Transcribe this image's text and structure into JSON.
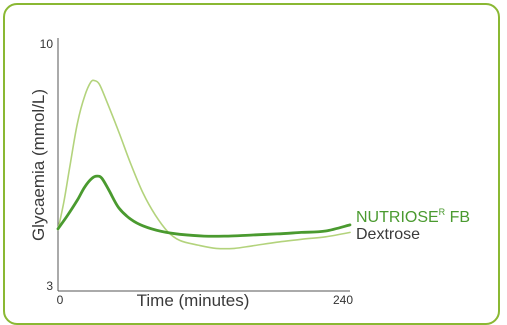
{
  "chart_data": {
    "type": "line",
    "title": "",
    "xlabel": "Time (minutes)",
    "ylabel": "Glycaemia (mmol/L)",
    "xlim": [
      0,
      240
    ],
    "ylim": [
      3,
      10
    ],
    "x_ticks": [
      "0",
      "240"
    ],
    "y_ticks": [
      "3",
      "10"
    ],
    "grid": false,
    "legend_placement": "right, at line ends",
    "series": [
      {
        "name": "NUTRIOSE",
        "name_superscript": "R",
        "name_suffix": " FB",
        "color": "#4a9a2f",
        "stroke_width": 2.8,
        "points": [
          [
            0,
            4.72
          ],
          [
            8,
            5.1
          ],
          [
            16,
            5.52
          ],
          [
            22,
            5.88
          ],
          [
            28,
            6.12
          ],
          [
            32,
            6.18
          ],
          [
            36,
            6.12
          ],
          [
            42,
            5.78
          ],
          [
            50,
            5.3
          ],
          [
            60,
            4.98
          ],
          [
            70,
            4.8
          ],
          [
            85,
            4.65
          ],
          [
            100,
            4.57
          ],
          [
            120,
            4.52
          ],
          [
            140,
            4.52
          ],
          [
            160,
            4.55
          ],
          [
            180,
            4.58
          ],
          [
            200,
            4.62
          ],
          [
            220,
            4.66
          ],
          [
            240,
            4.83
          ]
        ]
      },
      {
        "name": "Dextrose",
        "color": "#b3d37c",
        "stroke_width": 1.6,
        "points": [
          [
            0,
            4.7
          ],
          [
            5,
            5.5
          ],
          [
            10,
            6.5
          ],
          [
            16,
            7.65
          ],
          [
            22,
            8.4
          ],
          [
            27,
            8.78
          ],
          [
            30,
            8.82
          ],
          [
            34,
            8.72
          ],
          [
            40,
            8.25
          ],
          [
            50,
            7.4
          ],
          [
            60,
            6.5
          ],
          [
            70,
            5.7
          ],
          [
            80,
            5.1
          ],
          [
            90,
            4.65
          ],
          [
            100,
            4.4
          ],
          [
            115,
            4.27
          ],
          [
            130,
            4.18
          ],
          [
            145,
            4.18
          ],
          [
            160,
            4.25
          ],
          [
            180,
            4.35
          ],
          [
            200,
            4.43
          ],
          [
            220,
            4.5
          ],
          [
            240,
            4.62
          ]
        ]
      }
    ]
  }
}
